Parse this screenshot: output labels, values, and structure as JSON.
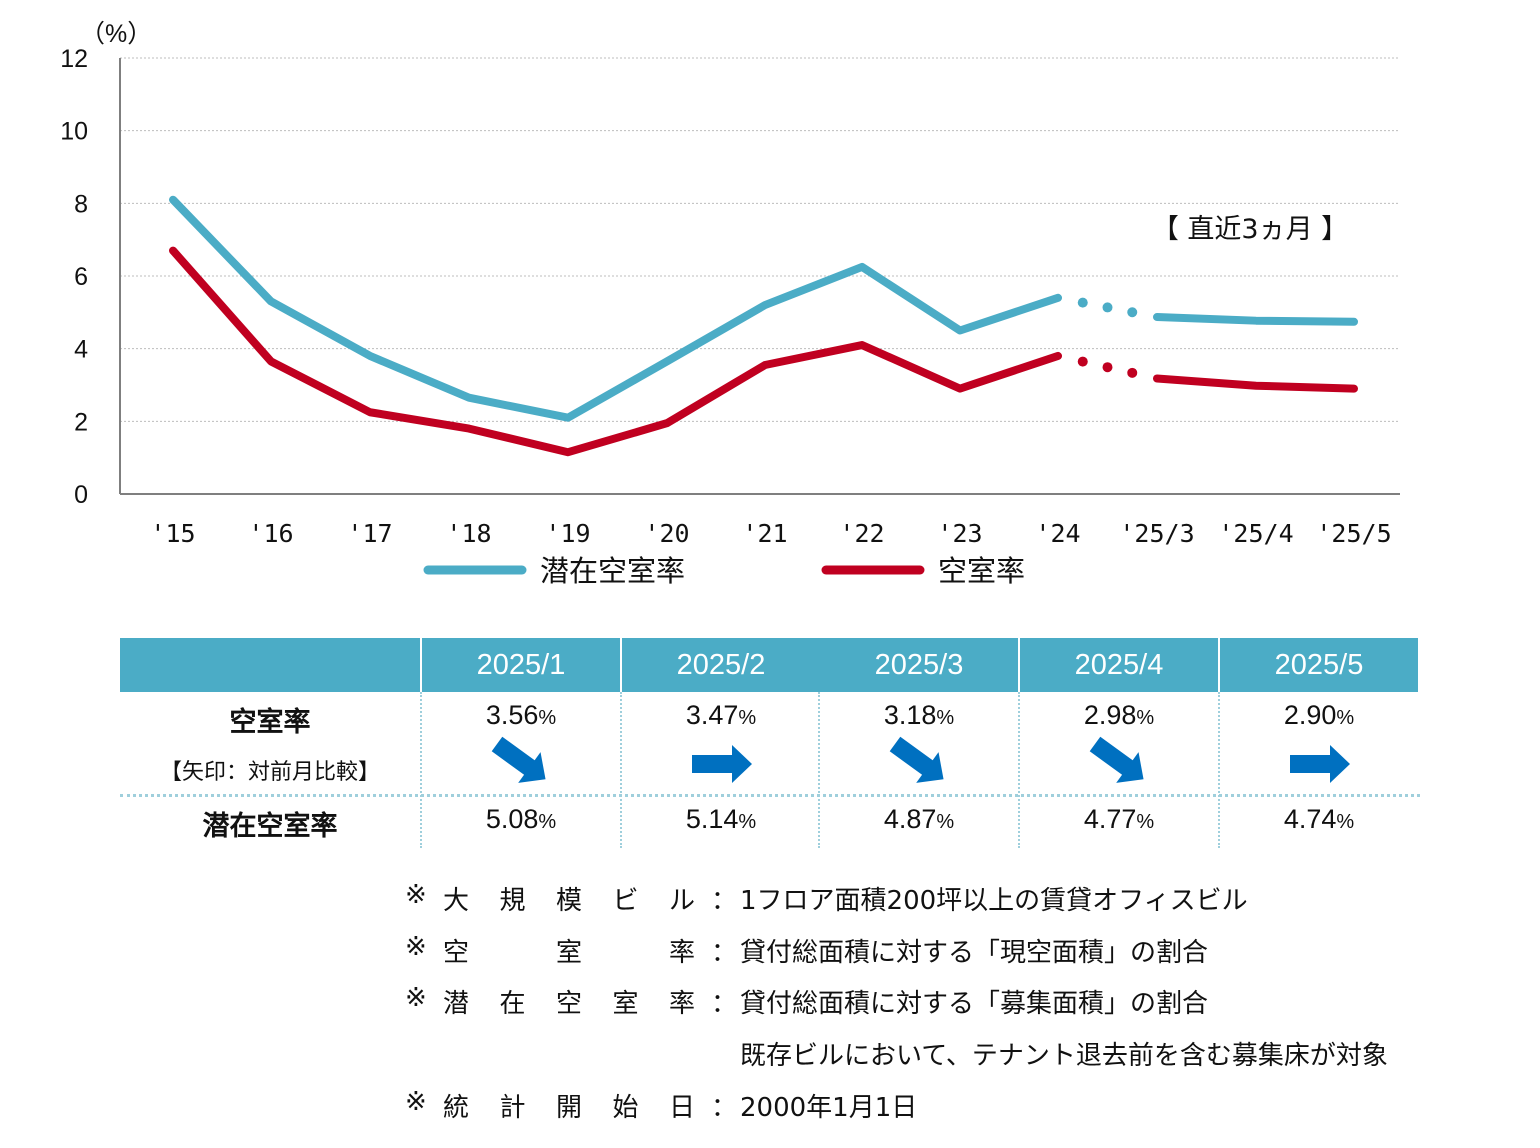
{
  "chart_data": {
    "type": "line",
    "unit_label": "（%）",
    "categories": [
      "'15",
      "'16",
      "'17",
      "'18",
      "'19",
      "'20",
      "'21",
      "'22",
      "'23",
      "'24",
      "'25/3",
      "'25/4",
      "'25/5"
    ],
    "ylim": [
      0,
      12
    ],
    "yticks": [
      "0",
      "2",
      "4",
      "6",
      "8",
      "10",
      "12"
    ],
    "grid": true,
    "legend_position": "bottom",
    "annotation": "【 直近3ヵ月 】",
    "series": [
      {
        "name": "潜在空室率",
        "color": "#4bacc6",
        "values": [
          8.1,
          5.3,
          3.8,
          2.65,
          2.1,
          3.65,
          5.2,
          6.25,
          4.5,
          5.4,
          4.87,
          4.77,
          4.74
        ]
      },
      {
        "name": "空室率",
        "color": "#c00020",
        "values": [
          6.7,
          3.65,
          2.25,
          1.8,
          1.15,
          1.95,
          3.55,
          4.1,
          2.9,
          3.8,
          3.18,
          2.98,
          2.9
        ]
      }
    ],
    "dotted_segment": "between '24 and '25/3"
  },
  "table": {
    "headers": [
      "2025/1",
      "2025/2",
      "2025/3",
      "2025/4",
      "2025/5"
    ],
    "vacancy_label": "空室率",
    "vacancy_sub": "【矢印：対前月比較】",
    "vacancy_values": [
      "3.56",
      "3.47",
      "3.18",
      "2.98",
      "2.90"
    ],
    "arrows": [
      "down-right",
      "right",
      "down-right",
      "down-right",
      "right"
    ],
    "potential_label": "潜在空室率",
    "potential_values": [
      "5.08",
      "5.14",
      "4.87",
      "4.77",
      "4.74"
    ],
    "pct_symbol": "%",
    "arrow_color": "#0070c0"
  },
  "notes": [
    {
      "mark": "※",
      "term": [
        "大",
        "規",
        "模",
        "ビ",
        "ル"
      ],
      "colon": "：",
      "definition": "1フロア面積200坪以上の賃貸オフィスビル"
    },
    {
      "mark": "※",
      "term": [
        "空",
        "室",
        "率"
      ],
      "colon": "：",
      "definition": "貸付総面積に対する「現空面積」の割合"
    },
    {
      "mark": "※",
      "term": [
        "潜",
        "在",
        "空",
        "室",
        "率"
      ],
      "colon": "：",
      "definition": "貸付総面積に対する「募集面積」の割合"
    },
    {
      "mark": "",
      "term": [],
      "colon": "",
      "definition": "既存ビルにおいて、テナント退去前を含む募集床が対象"
    },
    {
      "mark": "※",
      "term": [
        "統",
        "計",
        "開",
        "始",
        "日"
      ],
      "colon": "：",
      "definition": "2000年1月1日"
    }
  ]
}
